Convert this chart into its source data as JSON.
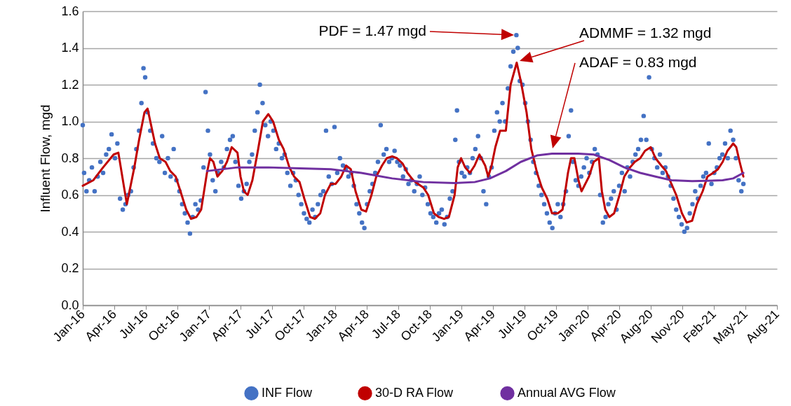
{
  "chart_data": {
    "type": "scatter",
    "ylabel": "Influent Flow, mgd",
    "xlim": [
      "2016-01-01",
      "2021-08-08"
    ],
    "ylim": [
      0,
      1.6
    ],
    "xticks": [
      {
        "value": "2016-01-01",
        "label": "Jan-16"
      },
      {
        "value": "2016-04-03",
        "label": "Apr-16"
      },
      {
        "value": "2016-07-05",
        "label": "Jul-16"
      },
      {
        "value": "2016-10-06",
        "label": "Oct-16"
      },
      {
        "value": "2017-01-07",
        "label": "Jan-17"
      },
      {
        "value": "2017-04-10",
        "label": "Apr-17"
      },
      {
        "value": "2017-07-12",
        "label": "Jul-17"
      },
      {
        "value": "2017-10-13",
        "label": "Oct-17"
      },
      {
        "value": "2018-01-14",
        "label": "Jan-18"
      },
      {
        "value": "2018-04-17",
        "label": "Apr-18"
      },
      {
        "value": "2018-07-19",
        "label": "Jul-18"
      },
      {
        "value": "2018-10-20",
        "label": "Oct-18"
      },
      {
        "value": "2019-01-21",
        "label": "Jan-19"
      },
      {
        "value": "2019-04-24",
        "label": "Apr-19"
      },
      {
        "value": "2019-07-26",
        "label": "Jul-19"
      },
      {
        "value": "2019-10-27",
        "label": "Oct-19"
      },
      {
        "value": "2020-01-28",
        "label": "Jan-20"
      },
      {
        "value": "2020-04-30",
        "label": "Apr-20"
      },
      {
        "value": "2020-08-01",
        "label": "Aug-20"
      },
      {
        "value": "2020-11-02",
        "label": "Nov-20"
      },
      {
        "value": "2021-02-03",
        "label": "Feb-21"
      },
      {
        "value": "2021-05-07",
        "label": "May-21"
      },
      {
        "value": "2021-08-08",
        "label": "Aug-21"
      }
    ],
    "yticks": [
      {
        "value": 0,
        "label": "0.0"
      },
      0.2,
      0.4,
      0.6,
      0.8,
      {
        "value": 1,
        "label": "1.0"
      },
      1.2,
      1.4,
      1.6
    ],
    "grid": "y",
    "legend": "bottom",
    "annotations": [
      "PDF = 1.47 mgd",
      "ADMMF = 1.32 mgd",
      "ADAF = 0.83 mgd"
    ],
    "series": [
      {
        "name": "INF Flow",
        "color": "#4472c4",
        "marker": "circle",
        "x": [
          "2016-01-01",
          "2016-01-05",
          "2016-01-12",
          "2016-01-20",
          "2016-01-28",
          "2016-02-05",
          "2016-02-14",
          "2016-02-22",
          "2016-03-01",
          "2016-03-10",
          "2016-03-18",
          "2016-03-26",
          "2016-04-05",
          "2016-04-12",
          "2016-04-20",
          "2016-04-28",
          "2016-05-06",
          "2016-05-14",
          "2016-05-22",
          "2016-05-30",
          "2016-06-07",
          "2016-06-15",
          "2016-06-22",
          "2016-06-28",
          "2016-07-03",
          "2016-07-10",
          "2016-07-18",
          "2016-07-26",
          "2016-08-05",
          "2016-08-14",
          "2016-08-22",
          "2016-08-30",
          "2016-09-08",
          "2016-09-16",
          "2016-09-25",
          "2016-10-03",
          "2016-10-12",
          "2016-10-20",
          "2016-10-28",
          "2016-11-05",
          "2016-11-12",
          "2016-11-20",
          "2016-11-28",
          "2016-12-06",
          "2016-12-14",
          "2016-12-22",
          "2016-12-28",
          "2017-01-04",
          "2017-01-10",
          "2017-01-18",
          "2017-01-26",
          "2017-02-03",
          "2017-02-12",
          "2017-02-20",
          "2017-03-01",
          "2017-03-10",
          "2017-03-18",
          "2017-03-26",
          "2017-04-04",
          "2017-04-12",
          "2017-04-20",
          "2017-04-28",
          "2017-05-06",
          "2017-05-14",
          "2017-05-22",
          "2017-05-30",
          "2017-06-06",
          "2017-06-14",
          "2017-06-22",
          "2017-06-30",
          "2017-07-08",
          "2017-07-16",
          "2017-07-24",
          "2017-08-01",
          "2017-08-10",
          "2017-08-18",
          "2017-08-26",
          "2017-09-04",
          "2017-09-12",
          "2017-09-20",
          "2017-09-28",
          "2017-10-06",
          "2017-10-14",
          "2017-10-22",
          "2017-10-30",
          "2017-11-08",
          "2017-11-16",
          "2017-11-24",
          "2017-12-02",
          "2017-12-10",
          "2017-12-18",
          "2017-12-26",
          "2018-01-04",
          "2018-01-12",
          "2018-01-20",
          "2018-01-28",
          "2018-02-06",
          "2018-02-14",
          "2018-02-22",
          "2018-03-02",
          "2018-03-10",
          "2018-03-18",
          "2018-03-26",
          "2018-04-03",
          "2018-04-10",
          "2018-04-18",
          "2018-04-26",
          "2018-05-04",
          "2018-05-12",
          "2018-05-20",
          "2018-05-28",
          "2018-06-06",
          "2018-06-14",
          "2018-06-22",
          "2018-06-30",
          "2018-07-08",
          "2018-07-16",
          "2018-07-24",
          "2018-08-02",
          "2018-08-10",
          "2018-08-18",
          "2018-08-26",
          "2018-09-04",
          "2018-09-12",
          "2018-09-20",
          "2018-09-28",
          "2018-10-06",
          "2018-10-14",
          "2018-10-22",
          "2018-10-30",
          "2018-11-08",
          "2018-11-16",
          "2018-11-24",
          "2018-12-02",
          "2018-12-10",
          "2018-12-18",
          "2018-12-26",
          "2019-01-03",
          "2019-01-08",
          "2019-01-14",
          "2019-01-22",
          "2019-01-30",
          "2019-02-07",
          "2019-02-15",
          "2019-02-23",
          "2019-03-03",
          "2019-03-11",
          "2019-03-19",
          "2019-03-27",
          "2019-04-04",
          "2019-04-12",
          "2019-04-20",
          "2019-04-28",
          "2019-05-06",
          "2019-05-14",
          "2019-05-22",
          "2019-05-30",
          "2019-06-07",
          "2019-06-15",
          "2019-06-23",
          "2019-07-02",
          "2019-07-06",
          "2019-07-12",
          "2019-07-20",
          "2019-07-28",
          "2019-08-05",
          "2019-08-13",
          "2019-08-21",
          "2019-08-29",
          "2019-09-06",
          "2019-09-14",
          "2019-09-22",
          "2019-09-30",
          "2019-10-08",
          "2019-10-16",
          "2019-10-24",
          "2019-11-01",
          "2019-11-09",
          "2019-11-17",
          "2019-11-25",
          "2019-12-03",
          "2019-12-10",
          "2019-12-16",
          "2019-12-24",
          "2020-01-01",
          "2020-01-09",
          "2020-01-17",
          "2020-01-25",
          "2020-02-02",
          "2020-02-10",
          "2020-02-18",
          "2020-02-26",
          "2020-03-05",
          "2020-03-13",
          "2020-03-21",
          "2020-03-29",
          "2020-04-06",
          "2020-04-14",
          "2020-04-22",
          "2020-04-30",
          "2020-05-08",
          "2020-05-16",
          "2020-05-24",
          "2020-06-01",
          "2020-06-09",
          "2020-06-17",
          "2020-06-25",
          "2020-07-03",
          "2020-07-11",
          "2020-07-19",
          "2020-07-27",
          "2020-08-04",
          "2020-08-12",
          "2020-08-20",
          "2020-08-28",
          "2020-09-05",
          "2020-09-13",
          "2020-09-21",
          "2020-09-29",
          "2020-10-07",
          "2020-10-15",
          "2020-10-23",
          "2020-10-31",
          "2020-11-08",
          "2020-11-16",
          "2020-11-24",
          "2020-12-02",
          "2020-12-10",
          "2020-12-18",
          "2020-12-26",
          "2021-01-03",
          "2021-01-11",
          "2021-01-19",
          "2021-01-27",
          "2021-02-04",
          "2021-02-12",
          "2021-02-20",
          "2021-02-28",
          "2021-03-08",
          "2021-03-16",
          "2021-03-24",
          "2021-04-01",
          "2021-04-09",
          "2021-04-17",
          "2021-04-25",
          "2021-05-01"
        ],
        "values": [
          0.98,
          0.72,
          0.62,
          0.68,
          0.75,
          0.62,
          0.7,
          0.78,
          0.72,
          0.82,
          0.85,
          0.93,
          0.8,
          0.88,
          0.58,
          0.52,
          0.55,
          0.6,
          0.62,
          0.75,
          0.85,
          0.95,
          1.1,
          1.29,
          1.24,
          1.05,
          0.95,
          0.88,
          0.8,
          0.78,
          0.92,
          0.72,
          0.8,
          0.7,
          0.85,
          0.68,
          0.62,
          0.55,
          0.5,
          0.45,
          0.39,
          0.48,
          0.55,
          0.52,
          0.57,
          0.75,
          1.16,
          0.95,
          0.82,
          0.68,
          0.62,
          0.72,
          0.78,
          0.75,
          0.85,
          0.9,
          0.92,
          0.78,
          0.65,
          0.58,
          0.62,
          0.66,
          0.78,
          0.82,
          0.95,
          1.05,
          1.2,
          1.1,
          0.98,
          0.92,
          1.0,
          0.95,
          0.85,
          0.88,
          0.8,
          0.82,
          0.72,
          0.65,
          0.72,
          0.68,
          0.6,
          0.55,
          0.5,
          0.47,
          0.45,
          0.52,
          0.48,
          0.55,
          0.6,
          0.62,
          0.95,
          0.7,
          0.66,
          0.97,
          0.72,
          0.8,
          0.76,
          0.74,
          0.7,
          0.72,
          0.65,
          0.55,
          0.5,
          0.45,
          0.42,
          0.55,
          0.62,
          0.66,
          0.72,
          0.78,
          0.98,
          0.82,
          0.85,
          0.78,
          0.8,
          0.84,
          0.78,
          0.76,
          0.7,
          0.74,
          0.66,
          0.68,
          0.62,
          0.66,
          0.7,
          0.6,
          0.64,
          0.55,
          0.5,
          0.48,
          0.45,
          0.5,
          0.52,
          0.44,
          0.48,
          0.58,
          0.62,
          0.9,
          1.06,
          0.78,
          0.72,
          0.7,
          0.75,
          0.72,
          0.8,
          0.85,
          0.92,
          0.8,
          0.62,
          0.55,
          0.7,
          0.75,
          0.95,
          1.05,
          1.0,
          1.1,
          1.0,
          1.18,
          1.3,
          1.38,
          1.47,
          1.4,
          1.22,
          1.2,
          1.1,
          1.0,
          0.9,
          0.78,
          0.72,
          0.65,
          0.6,
          0.55,
          0.5,
          0.45,
          0.42,
          0.5,
          0.55,
          0.48,
          0.55,
          0.62,
          0.92,
          1.06,
          0.78,
          0.68,
          0.65,
          0.7,
          0.75,
          0.8,
          0.72,
          0.78,
          0.85,
          0.82,
          0.6,
          0.45,
          0.48,
          0.55,
          0.58,
          0.62,
          0.52,
          0.65,
          0.72,
          0.62,
          0.75,
          0.7,
          0.78,
          0.82,
          0.85,
          0.9,
          1.03,
          0.9,
          1.24,
          0.85,
          0.8,
          0.75,
          0.82,
          0.72,
          0.75,
          0.7,
          0.65,
          0.58,
          0.52,
          0.48,
          0.44,
          0.4,
          0.42,
          0.5,
          0.55,
          0.62,
          0.58,
          0.65,
          0.7,
          0.72,
          0.88,
          0.66,
          0.72,
          0.75,
          0.8,
          0.82,
          0.88,
          0.8,
          0.95,
          0.9,
          0.8,
          0.68,
          0.62,
          0.66
        ]
      },
      {
        "name": "30-D RA Flow",
        "type": "line",
        "color": "#c00000",
        "x": [
          "2016-01-01",
          "2016-02-01",
          "2016-03-01",
          "2016-04-01",
          "2016-04-15",
          "2016-05-01",
          "2016-05-10",
          "2016-06-01",
          "2016-06-15",
          "2016-07-01",
          "2016-07-10",
          "2016-08-01",
          "2016-08-15",
          "2016-09-01",
          "2016-09-15",
          "2016-10-01",
          "2016-10-15",
          "2016-11-01",
          "2016-11-15",
          "2016-12-01",
          "2016-12-15",
          "2017-01-01",
          "2017-01-10",
          "2017-01-20",
          "2017-02-01",
          "2017-02-15",
          "2017-03-01",
          "2017-03-15",
          "2017-04-01",
          "2017-04-10",
          "2017-04-20",
          "2017-05-01",
          "2017-05-15",
          "2017-06-01",
          "2017-06-15",
          "2017-07-01",
          "2017-07-15",
          "2017-08-01",
          "2017-08-15",
          "2017-09-01",
          "2017-09-15",
          "2017-10-01",
          "2017-10-15",
          "2017-11-01",
          "2017-11-15",
          "2017-12-01",
          "2017-12-15",
          "2018-01-01",
          "2018-01-15",
          "2018-02-01",
          "2018-02-15",
          "2018-03-01",
          "2018-03-15",
          "2018-04-01",
          "2018-04-15",
          "2018-05-01",
          "2018-05-15",
          "2018-06-01",
          "2018-06-15",
          "2018-07-01",
          "2018-07-15",
          "2018-08-01",
          "2018-08-15",
          "2018-09-01",
          "2018-09-15",
          "2018-10-01",
          "2018-10-15",
          "2018-11-01",
          "2018-11-15",
          "2018-12-01",
          "2018-12-15",
          "2019-01-01",
          "2019-01-10",
          "2019-01-20",
          "2019-02-01",
          "2019-02-15",
          "2019-03-01",
          "2019-03-15",
          "2019-04-01",
          "2019-04-10",
          "2019-04-20",
          "2019-05-01",
          "2019-05-15",
          "2019-06-01",
          "2019-06-15",
          "2019-07-03",
          "2019-07-15",
          "2019-08-01",
          "2019-08-15",
          "2019-09-01",
          "2019-09-15",
          "2019-10-01",
          "2019-10-15",
          "2019-11-01",
          "2019-11-15",
          "2019-12-01",
          "2019-12-10",
          "2019-12-20",
          "2020-01-01",
          "2020-01-10",
          "2020-02-01",
          "2020-02-15",
          "2020-03-01",
          "2020-03-10",
          "2020-03-20",
          "2020-04-01",
          "2020-04-15",
          "2020-05-01",
          "2020-05-15",
          "2020-06-01",
          "2020-06-15",
          "2020-07-01",
          "2020-07-15",
          "2020-08-01",
          "2020-08-15",
          "2020-09-01",
          "2020-09-15",
          "2020-10-01",
          "2020-10-15",
          "2020-11-01",
          "2020-11-15",
          "2020-12-01",
          "2020-12-15",
          "2021-01-01",
          "2021-01-15",
          "2021-02-01",
          "2021-02-15",
          "2021-03-01",
          "2021-03-15",
          "2021-04-01",
          "2021-04-10",
          "2021-04-20",
          "2021-05-01"
        ],
        "values": [
          0.65,
          0.68,
          0.75,
          0.82,
          0.83,
          0.65,
          0.55,
          0.75,
          0.9,
          1.05,
          1.07,
          0.88,
          0.8,
          0.78,
          0.73,
          0.7,
          0.62,
          0.52,
          0.47,
          0.48,
          0.52,
          0.72,
          0.8,
          0.78,
          0.7,
          0.73,
          0.78,
          0.86,
          0.83,
          0.7,
          0.62,
          0.6,
          0.68,
          0.85,
          1.0,
          1.04,
          1.0,
          0.9,
          0.85,
          0.75,
          0.7,
          0.67,
          0.58,
          0.48,
          0.47,
          0.5,
          0.6,
          0.66,
          0.66,
          0.7,
          0.76,
          0.74,
          0.62,
          0.52,
          0.51,
          0.6,
          0.7,
          0.76,
          0.8,
          0.81,
          0.8,
          0.77,
          0.72,
          0.68,
          0.66,
          0.64,
          0.6,
          0.5,
          0.48,
          0.47,
          0.48,
          0.6,
          0.75,
          0.8,
          0.75,
          0.72,
          0.76,
          0.82,
          0.76,
          0.7,
          0.76,
          0.86,
          0.95,
          0.95,
          1.2,
          1.32,
          1.22,
          1.05,
          0.85,
          0.72,
          0.64,
          0.58,
          0.5,
          0.5,
          0.52,
          0.72,
          0.8,
          0.8,
          0.68,
          0.62,
          0.7,
          0.78,
          0.8,
          0.62,
          0.52,
          0.48,
          0.5,
          0.6,
          0.7,
          0.75,
          0.78,
          0.8,
          0.84,
          0.86,
          0.8,
          0.76,
          0.73,
          0.66,
          0.6,
          0.5,
          0.45,
          0.46,
          0.55,
          0.62,
          0.7,
          0.72,
          0.74,
          0.78,
          0.84,
          0.88,
          0.86,
          0.78,
          0.7
        ]
      },
      {
        "name": "Annual AVG Flow",
        "type": "line",
        "color": "#7030a0",
        "x": [
          "2017-01-01",
          "2017-04-01",
          "2017-07-01",
          "2017-10-01",
          "2018-01-01",
          "2018-02-15",
          "2018-04-01",
          "2018-07-01",
          "2018-10-01",
          "2019-01-01",
          "2019-03-01",
          "2019-04-15",
          "2019-06-01",
          "2019-07-15",
          "2019-09-01",
          "2019-10-15",
          "2020-01-01",
          "2020-02-15",
          "2020-04-01",
          "2020-05-15",
          "2020-07-01",
          "2020-08-15",
          "2020-10-01",
          "2020-12-01",
          "2021-03-01",
          "2021-04-01",
          "2021-05-01"
        ],
        "values": [
          0.73,
          0.75,
          0.75,
          0.745,
          0.74,
          0.73,
          0.72,
          0.69,
          0.67,
          0.665,
          0.67,
          0.69,
          0.73,
          0.78,
          0.815,
          0.825,
          0.825,
          0.82,
          0.79,
          0.75,
          0.72,
          0.7,
          0.68,
          0.675,
          0.68,
          0.69,
          0.72
        ]
      }
    ]
  }
}
